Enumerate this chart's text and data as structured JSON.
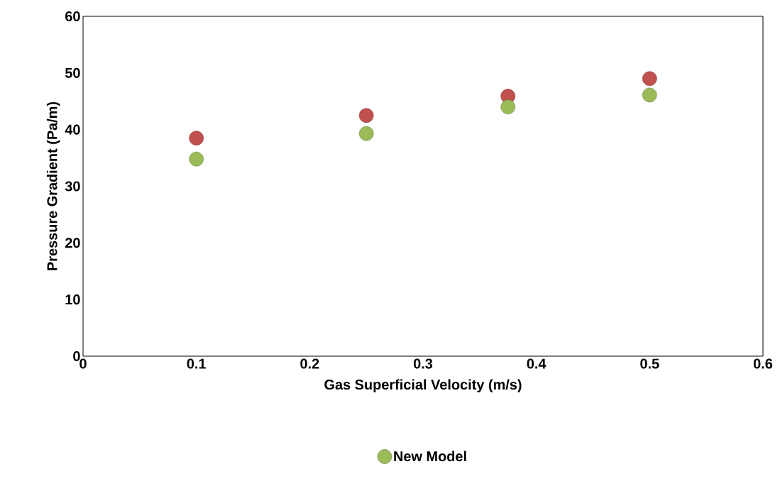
{
  "chart_data": {
    "type": "scatter",
    "xlabel": "Gas Superficial Velocity (m/s)",
    "ylabel": "Pressure Gradient (Pa/m)",
    "x": [
      0.1,
      0.25,
      0.375,
      0.5
    ],
    "series": [
      {
        "color": "#c0504d",
        "values": [
          38.5,
          42.5,
          45.9,
          49.0
        ]
      },
      {
        "name": "New Model",
        "color": "#9bbb59",
        "values": [
          34.8,
          39.3,
          44.0,
          46.1
        ]
      }
    ],
    "xlim": [
      0,
      0.6
    ],
    "xticks": [
      0,
      0.1,
      0.2,
      0.3,
      0.4,
      0.5,
      0.6
    ],
    "ylim": [
      0,
      60
    ],
    "yticks": [
      0,
      10,
      20,
      30,
      40,
      50,
      60
    ],
    "legend": "bottom",
    "marker": "circle"
  }
}
